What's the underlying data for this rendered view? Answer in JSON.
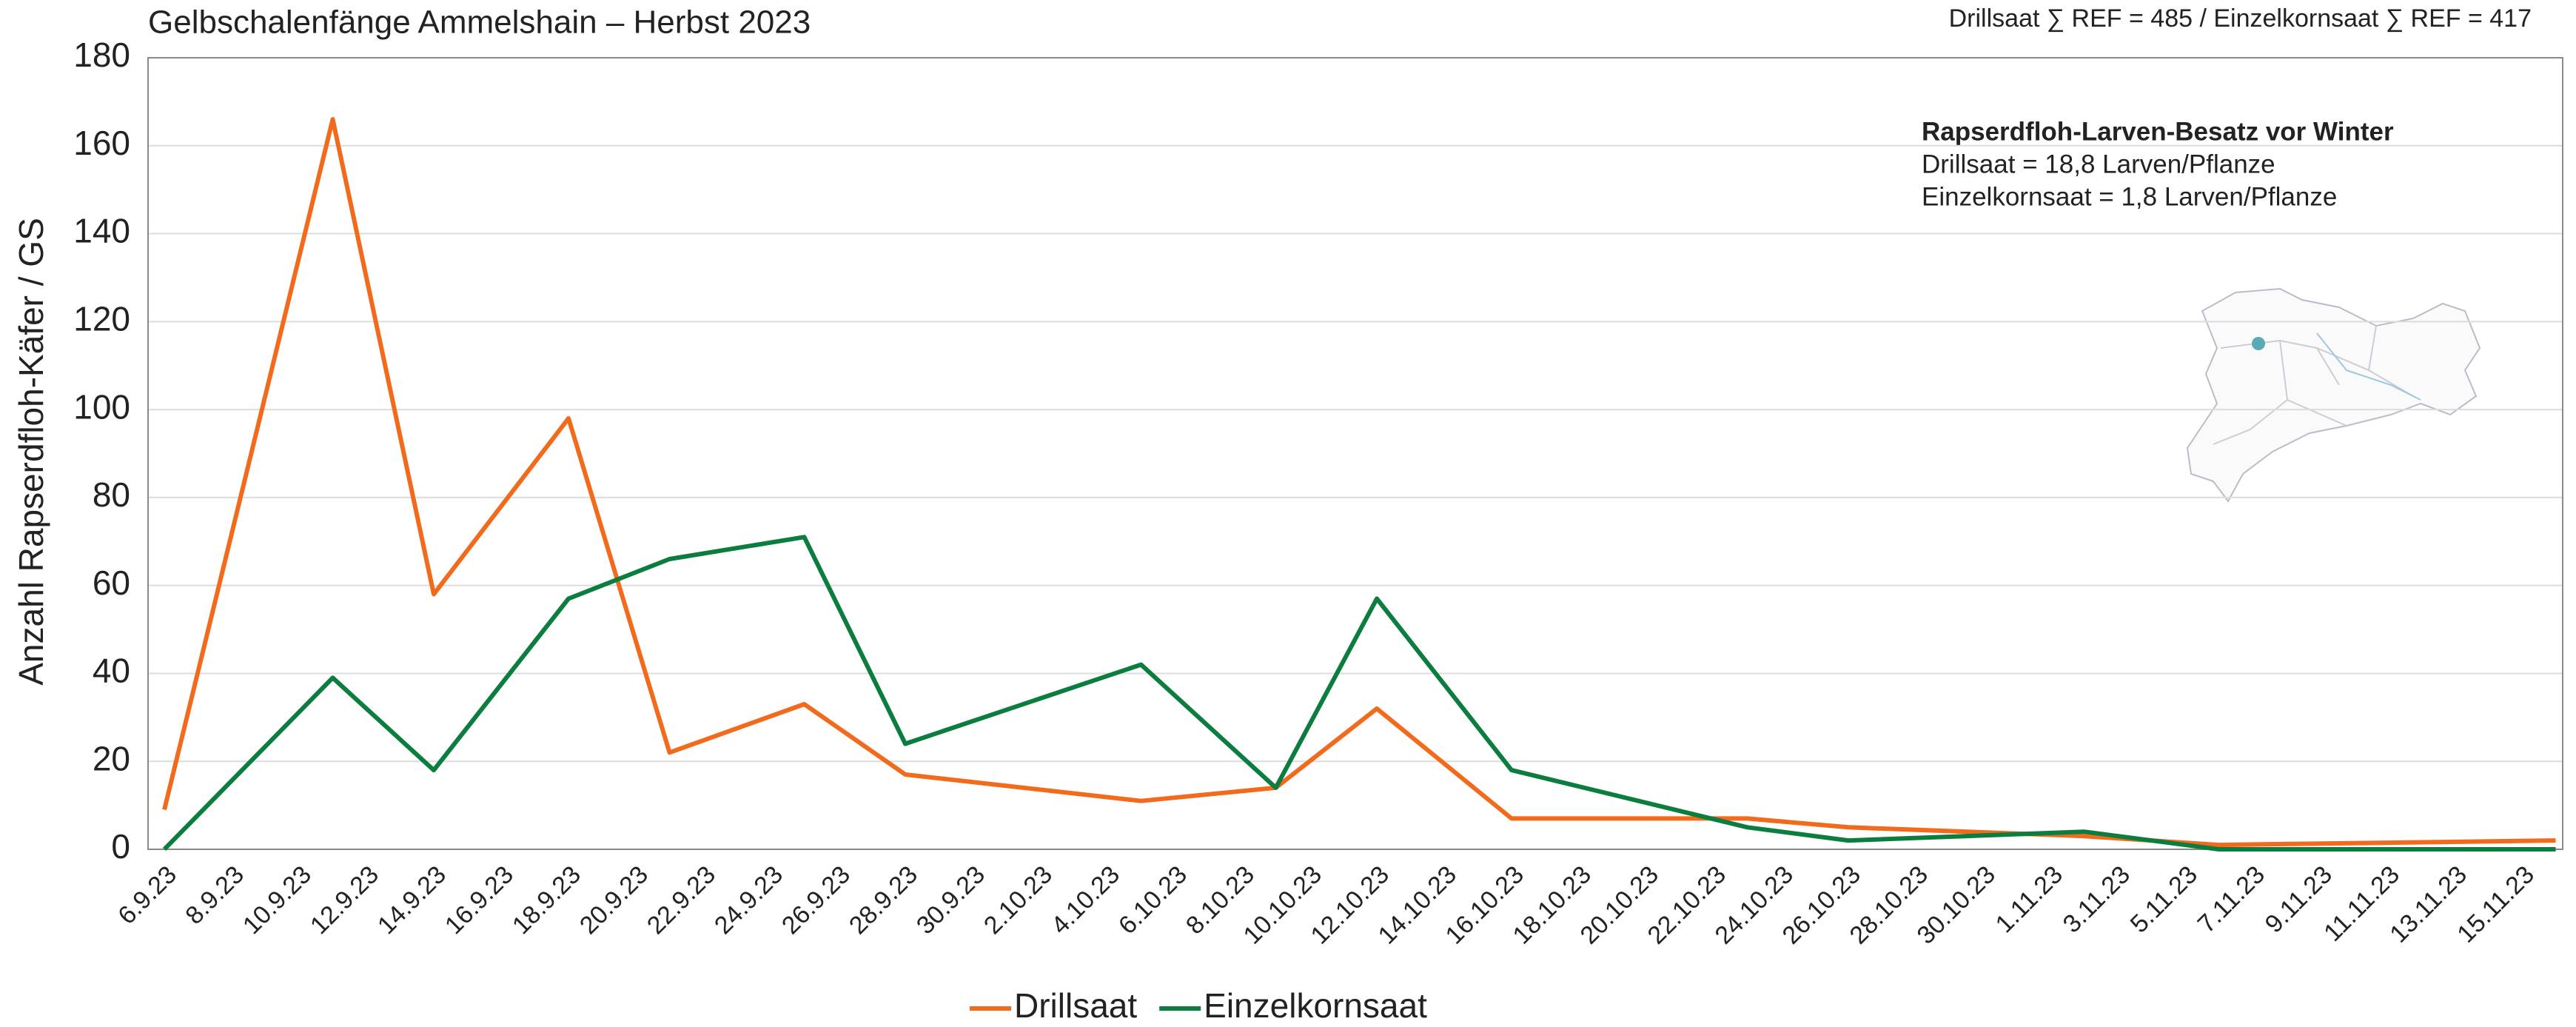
{
  "chart_data": {
    "type": "line",
    "title": "Gelbschalenfänge Ammelshain – Herbst 2023",
    "subtitle": "Drillsaat ∑ REF = 485 / Einzelkornsaat ∑ REF = 417",
    "annotation": {
      "title": "Rapserdfloh-Larven-Besatz vor Winter",
      "lines": [
        "Drillsaat = 18,8 Larven/Pflanze",
        "Einzelkornsaat = 1,8 Larven/Pflanze"
      ]
    },
    "y_label": "Anzahl Rapserdfloh-Käfer / GS",
    "x": [
      "6.9.23",
      "11.9.23",
      "14.9.23",
      "18.9.23",
      "21.9.23",
      "25.9.23",
      "28.9.23",
      "5.10.23",
      "9.10.23",
      "12.10.23",
      "16.10.23",
      "23.10.23",
      "26.10.23",
      "2.11.23",
      "6.11.23",
      "16.11.23"
    ],
    "xticks": [
      "6.9.23",
      "8.9.23",
      "10.9.23",
      "12.9.23",
      "14.9.23",
      "16.9.23",
      "18.9.23",
      "20.9.23",
      "22.9.23",
      "24.9.23",
      "26.9.23",
      "28.9.23",
      "30.9.23",
      "2.10.23",
      "4.10.23",
      "6.10.23",
      "8.10.23",
      "10.10.23",
      "12.10.23",
      "14.10.23",
      "16.10.23",
      "18.10.23",
      "20.10.23",
      "22.10.23",
      "24.10.23",
      "26.10.23",
      "28.10.23",
      "30.10.23",
      "1.11.23",
      "3.11.23",
      "5.11.23",
      "7.11.23",
      "9.11.23",
      "11.11.23",
      "13.11.23",
      "15.11.23"
    ],
    "series": [
      {
        "name": "Drillsaat",
        "color": "#f26b1d",
        "values": [
          9,
          166,
          58,
          98,
          22,
          33,
          17,
          11,
          14,
          32,
          7,
          7,
          5,
          3,
          1,
          2
        ]
      },
      {
        "name": "Einzelkornsaat",
        "color": "#0b7d3e",
        "values": [
          0,
          39,
          18,
          57,
          66,
          71,
          24,
          42,
          14,
          57,
          18,
          5,
          2,
          4,
          0,
          0
        ]
      }
    ],
    "ylim": [
      0,
      180
    ],
    "yticks": [
      0,
      20,
      40,
      60,
      80,
      100,
      120,
      140,
      160,
      180
    ],
    "grid": true,
    "legend": "bottom"
  }
}
